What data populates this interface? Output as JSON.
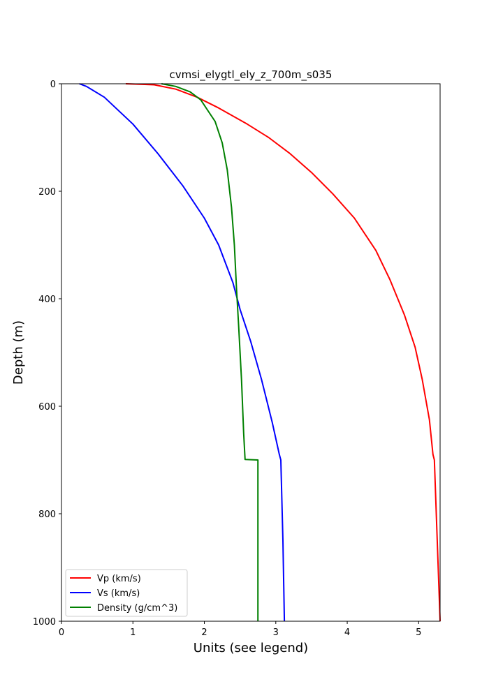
{
  "chart_data": {
    "type": "line",
    "title": "cvmsi_elygtl_ely_z_700m_s035",
    "xlabel": "Units (see legend)",
    "ylabel": "Depth (m)",
    "xlim": [
      0,
      5.3
    ],
    "ylim": [
      1000,
      0
    ],
    "y_inverted": true,
    "xticks": [
      0,
      1,
      2,
      3,
      4,
      5
    ],
    "yticks": [
      0,
      200,
      400,
      600,
      800,
      1000
    ],
    "grid": false,
    "legend_position": "lower-left",
    "series": [
      {
        "name": "Vp (km/s)",
        "color": "#ff0000",
        "points": [
          [
            0.9,
            0
          ],
          [
            1.3,
            2
          ],
          [
            1.6,
            10
          ],
          [
            1.9,
            25
          ],
          [
            2.2,
            45
          ],
          [
            2.6,
            75
          ],
          [
            2.9,
            100
          ],
          [
            3.2,
            130
          ],
          [
            3.5,
            165
          ],
          [
            3.8,
            205
          ],
          [
            4.1,
            250
          ],
          [
            4.4,
            310
          ],
          [
            4.6,
            365
          ],
          [
            4.8,
            430
          ],
          [
            4.95,
            490
          ],
          [
            5.05,
            550
          ],
          [
            5.15,
            625
          ],
          [
            5.2,
            690
          ],
          [
            5.22,
            700
          ],
          [
            5.26,
            850
          ],
          [
            5.3,
            1000
          ]
        ]
      },
      {
        "name": "Vs (km/s)",
        "color": "#0000ff",
        "points": [
          [
            0.25,
            0
          ],
          [
            0.35,
            5
          ],
          [
            0.6,
            25
          ],
          [
            1.0,
            75
          ],
          [
            1.35,
            130
          ],
          [
            1.7,
            190
          ],
          [
            2.0,
            250
          ],
          [
            2.2,
            300
          ],
          [
            2.4,
            370
          ],
          [
            2.5,
            420
          ],
          [
            2.65,
            480
          ],
          [
            2.8,
            550
          ],
          [
            2.95,
            630
          ],
          [
            3.05,
            690
          ],
          [
            3.07,
            700
          ],
          [
            3.1,
            850
          ],
          [
            3.12,
            1000
          ]
        ]
      },
      {
        "name": "Density (g/cm^3)",
        "color": "#008000",
        "points": [
          [
            1.4,
            0
          ],
          [
            1.6,
            5
          ],
          [
            1.8,
            15
          ],
          [
            1.95,
            30
          ],
          [
            2.05,
            50
          ],
          [
            2.15,
            70
          ],
          [
            2.25,
            110
          ],
          [
            2.32,
            160
          ],
          [
            2.38,
            230
          ],
          [
            2.42,
            300
          ],
          [
            2.45,
            380
          ],
          [
            2.48,
            450
          ],
          [
            2.52,
            550
          ],
          [
            2.55,
            650
          ],
          [
            2.57,
            699
          ],
          [
            2.75,
            700
          ],
          [
            2.75,
            850
          ],
          [
            2.75,
            1000
          ]
        ]
      }
    ]
  }
}
